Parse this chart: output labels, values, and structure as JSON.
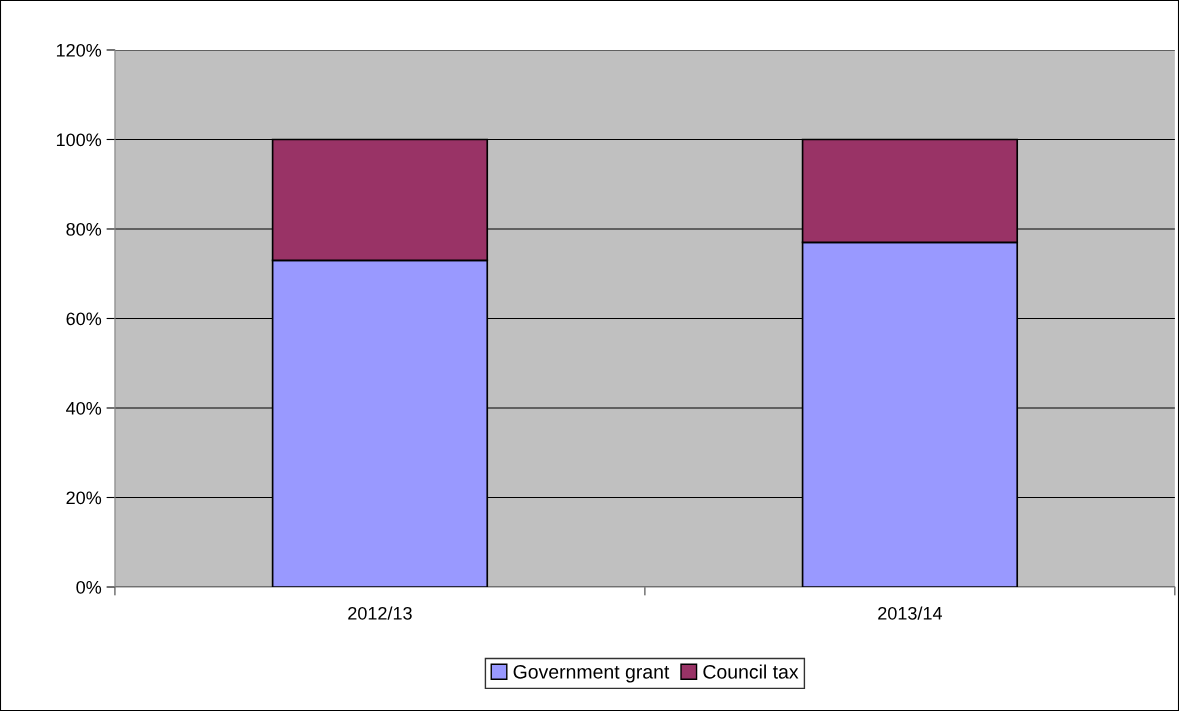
{
  "chart_data": {
    "type": "bar",
    "stacked": true,
    "categories": [
      "2012/13",
      "2013/14"
    ],
    "series": [
      {
        "name": "Government grant",
        "color": "#9999ff",
        "values": [
          73,
          77
        ]
      },
      {
        "name": "Council tax",
        "color": "#993366",
        "values": [
          27,
          23
        ]
      }
    ],
    "ylim": [
      0,
      120
    ],
    "yticks": [
      {
        "value": 0,
        "label": "0%"
      },
      {
        "value": 20,
        "label": "20%"
      },
      {
        "value": 40,
        "label": "40%"
      },
      {
        "value": 60,
        "label": "60%"
      },
      {
        "value": 80,
        "label": "80%"
      },
      {
        "value": 100,
        "label": "100%"
      },
      {
        "value": 120,
        "label": "120%"
      }
    ],
    "grid": "y",
    "legend": "bottom"
  }
}
